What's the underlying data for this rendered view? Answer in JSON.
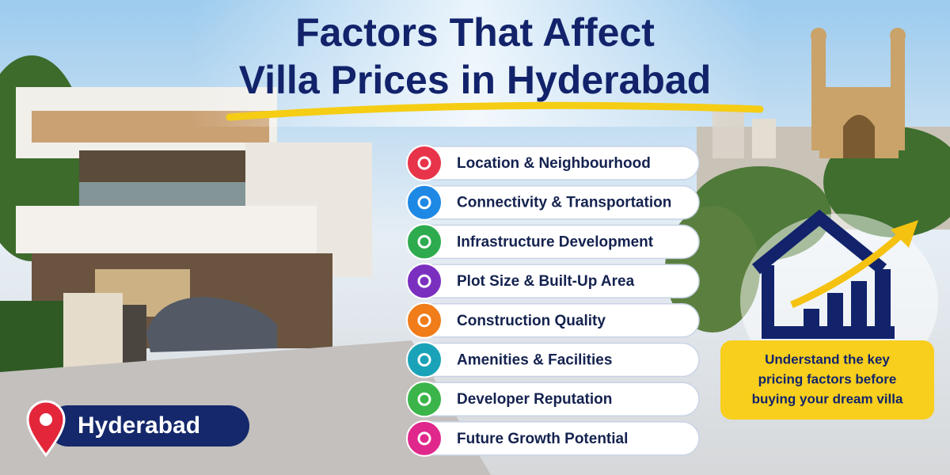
{
  "header": {
    "title_lines": [
      "Factors That Affect",
      "Villa Prices in Hyderabad"
    ]
  },
  "factors": [
    "Location & Neighbourhood",
    "Connectivity & Transportation",
    "Infrastructure Development",
    "Plot Size & Built-Up Area",
    "Construction Quality",
    "Amenities & Facilities",
    "Developer Reputation",
    "Future Growth Potential"
  ],
  "location_badge": "Hyderabad",
  "callout": {
    "lines": [
      "Understand the key",
      "pricing factors before",
      "buying your dream villa"
    ]
  }
}
